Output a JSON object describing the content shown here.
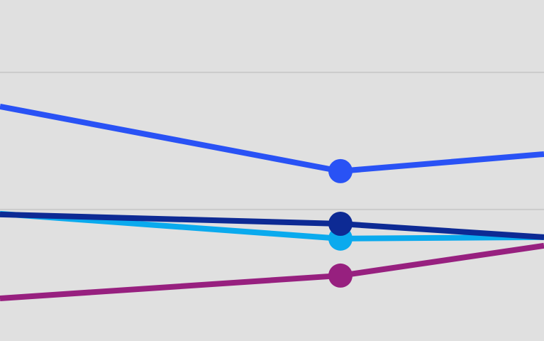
{
  "chart_data": {
    "type": "line",
    "x": [
      0,
      480,
      767
    ],
    "xlim": [
      0,
      767
    ],
    "ylim": [
      0.41,
      25.28
    ],
    "yticks": [
      10,
      20
    ],
    "grid": true,
    "series": [
      {
        "color": "#97207f",
        "values": [
          3.52,
          5.18,
          7.36
        ]
      },
      {
        "color": "#0aaaee",
        "values": [
          9.69,
          7.88,
          7.98
        ]
      },
      {
        "color": "#0d2a94",
        "values": [
          9.64,
          8.96,
          7.98
        ]
      },
      {
        "color": "#2952f5",
        "values": [
          17.51,
          12.8,
          14.04
        ]
      }
    ]
  }
}
